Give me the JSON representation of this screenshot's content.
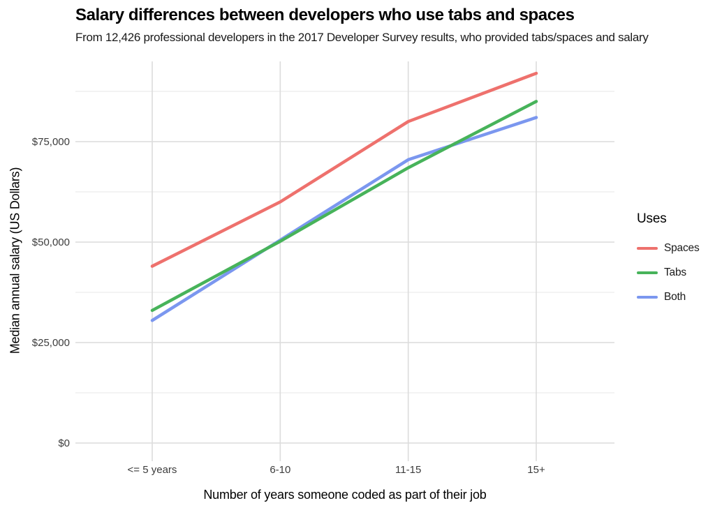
{
  "chart_data": {
    "type": "line",
    "title": "Salary differences between developers who use tabs and spaces",
    "subtitle": "From 12,426 professional developers in the 2017 Developer Survey results, who provided tabs/spaces and salary",
    "xlabel": "Number of years someone coded as part of their job",
    "ylabel": "Median annual salary (US Dollars)",
    "categories": [
      "<= 5 years",
      "6-10",
      "11-15",
      "15+"
    ],
    "series": [
      {
        "name": "Spaces",
        "color": "#EE716D",
        "values": [
          44000,
          60000,
          80000,
          92000
        ]
      },
      {
        "name": "Tabs",
        "color": "#47B35A",
        "values": [
          33000,
          50200,
          68500,
          85000
        ]
      },
      {
        "name": "Both",
        "color": "#7B97EF",
        "values": [
          30500,
          50500,
          70500,
          81000
        ]
      }
    ],
    "legend": {
      "title": "Uses",
      "position": "right",
      "labels": [
        "Spaces",
        "Tabs",
        "Both"
      ]
    },
    "y_axis": {
      "ticks": [
        0,
        25000,
        50000,
        75000
      ],
      "tick_labels": [
        "$0",
        "$25,000",
        "$50,000",
        "$75,000"
      ],
      "minor_ticks": [
        12500,
        37500,
        62500,
        87500
      ],
      "range": [
        0,
        95000
      ]
    },
    "x_axis": {
      "range_note": "discrete categories"
    },
    "grid": {
      "show": true,
      "major_color": "#DCDCDC",
      "minor_color": "#ECECEC"
    },
    "colors": {
      "tick_text": "#3C3C3C",
      "title_text": "#000000"
    }
  }
}
